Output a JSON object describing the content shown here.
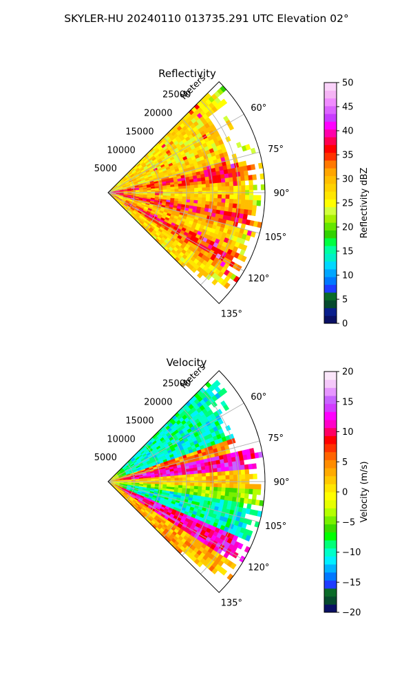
{
  "figure_title": "SKYLER-HU  20240110  013735.291 UTC Elevation 02°",
  "chart_data": [
    {
      "type": "heatmap",
      "title": "Reflectivity",
      "projection": "polar-sector",
      "radial_axis_label": "Meters",
      "radial_ticks": [
        "5000",
        "10000",
        "15000",
        "20000",
        "25000"
      ],
      "radial_tick_values": [
        5000,
        10000,
        15000,
        20000,
        25000
      ],
      "radial_range": [
        0,
        30000
      ],
      "azimuth_range_deg": [
        45,
        135
      ],
      "azimuth_ticks": [
        "60°",
        "75°",
        "90°",
        "105°",
        "120°",
        "135°"
      ],
      "azimuth_tick_values": [
        60,
        75,
        90,
        105,
        120,
        135
      ],
      "grid": true,
      "colorbar": {
        "label": "Reflectivity dBZ",
        "range": [
          0,
          50
        ],
        "ticks": [
          "0",
          "5",
          "10",
          "15",
          "20",
          "25",
          "30",
          "35",
          "40",
          "45",
          "50"
        ],
        "tick_values": [
          0,
          5,
          10,
          15,
          20,
          25,
          30,
          35,
          40,
          45,
          50
        ],
        "colors": [
          "#0a1064",
          "#0a1f8c",
          "#064a2e",
          "#0a6b28",
          "#1e3cff",
          "#0078ff",
          "#00a6ff",
          "#00d8ff",
          "#00f0c8",
          "#00ffa0",
          "#00ff40",
          "#32d200",
          "#64e600",
          "#a6f000",
          "#d2ff3c",
          "#ffff00",
          "#ffe600",
          "#ffd200",
          "#ffbe00",
          "#ffa500",
          "#ff7800",
          "#ff3200",
          "#ff0000",
          "#ff0050",
          "#ff00aa",
          "#ff00ff",
          "#c83cff",
          "#dc64ff",
          "#f08cff",
          "#f5b4f5",
          "#fad2fa"
        ]
      },
      "field": "reflectivity",
      "field_summary": {
        "dominant_range": [
          22,
          32
        ],
        "strong_bands": [
          {
            "azimuth_deg": 80,
            "value": 36
          },
          {
            "azimuth_deg": 100,
            "value": 36
          },
          {
            "azimuth_deg": 118,
            "value": 36
          }
        ],
        "near_radar_max": 42,
        "weak_edge": 18,
        "no_echo_region": {
          "azimuth_deg": [
            52,
            75
          ],
          "range_m": [
            24000,
            30000
          ]
        }
      }
    },
    {
      "type": "heatmap",
      "title": "Velocity",
      "projection": "polar-sector",
      "radial_axis_label": "Meters",
      "radial_ticks": [
        "5000",
        "10000",
        "15000",
        "20000",
        "25000"
      ],
      "radial_tick_values": [
        5000,
        10000,
        15000,
        20000,
        25000
      ],
      "radial_range": [
        0,
        30000
      ],
      "azimuth_range_deg": [
        45,
        135
      ],
      "azimuth_ticks": [
        "60°",
        "75°",
        "90°",
        "105°",
        "120°",
        "135°"
      ],
      "azimuth_tick_values": [
        60,
        75,
        90,
        105,
        120,
        135
      ],
      "grid": true,
      "colorbar": {
        "label": "Velocity (m/s)",
        "range": [
          -20,
          20
        ],
        "ticks": [
          "−20",
          "−15",
          "−10",
          "−5",
          "0",
          "5",
          "10",
          "15",
          "20"
        ],
        "tick_values": [
          -20,
          -15,
          -10,
          -5,
          0,
          5,
          10,
          15,
          20
        ],
        "colors": [
          "#0a1064",
          "#064a2e",
          "#0a6b28",
          "#1e3cff",
          "#0078ff",
          "#00b4ff",
          "#00f0ff",
          "#00ffc8",
          "#00ff78",
          "#00ff00",
          "#3cdc00",
          "#78f000",
          "#b4ff00",
          "#e6ff00",
          "#ffff00",
          "#ffe600",
          "#ffc800",
          "#ffaa00",
          "#ff8c00",
          "#ff6400",
          "#ff3200",
          "#ff0000",
          "#ff0064",
          "#ff00c8",
          "#ff00ff",
          "#d23cff",
          "#c864ff",
          "#e696ff",
          "#f5c8fa",
          "#fae6fa"
        ]
      },
      "field": "velocity",
      "field_summary": {
        "near_90deg": 1,
        "north_sector": {
          "azimuth_deg": [
            50,
            75
          ],
          "value": -10
        },
        "north_band": {
          "azimuth_deg": 80,
          "value": 12
        },
        "south_band": {
          "azimuth_deg": 118,
          "value": 11
        },
        "mid_south": {
          "azimuth_deg": [
            100,
            112
          ],
          "value": -10
        },
        "far_south": {
          "azimuth_deg": [
            125,
            135
          ],
          "value": 3
        },
        "no_echo_region": {
          "azimuth_deg": [
            52,
            75
          ],
          "range_m": [
            24000,
            30000
          ]
        }
      }
    }
  ]
}
